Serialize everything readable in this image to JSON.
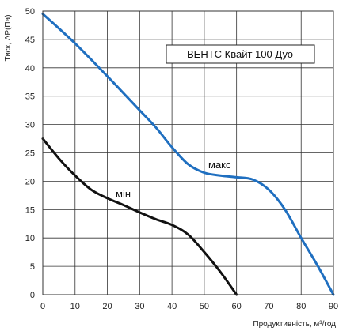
{
  "chart_data": {
    "type": "line",
    "title": "ВЕНТС Квайт 100 Дуо",
    "xlabel": "Продуктивність, м³/год",
    "ylabel": "Тиск, ΔР(Па)",
    "xlim": [
      0,
      90
    ],
    "ylim": [
      0,
      50
    ],
    "xticks": [
      0,
      10,
      20,
      30,
      40,
      50,
      60,
      70,
      80,
      90
    ],
    "yticks": [
      0,
      5,
      10,
      15,
      20,
      25,
      30,
      35,
      40,
      45,
      50
    ],
    "grid": true,
    "legend": "none",
    "series": [
      {
        "name": "макс",
        "color": "#1f6fc0",
        "x": [
          0,
          10,
          20,
          30,
          35,
          40,
          45,
          50,
          55,
          60,
          65,
          70,
          75,
          80,
          85,
          90
        ],
        "y": [
          49.5,
          44.3,
          38.5,
          32.5,
          29.5,
          26,
          23,
          21.5,
          21,
          20.7,
          20.3,
          18.5,
          15,
          10,
          5.2,
          0
        ]
      },
      {
        "name": "мін",
        "color": "#111111",
        "x": [
          0,
          5,
          10,
          15,
          20,
          25,
          30,
          35,
          40,
          45,
          50,
          55,
          60
        ],
        "y": [
          27.5,
          24,
          21,
          18.5,
          17,
          15.8,
          14.5,
          13.3,
          12.3,
          10.6,
          7.5,
          4,
          0
        ]
      }
    ]
  }
}
